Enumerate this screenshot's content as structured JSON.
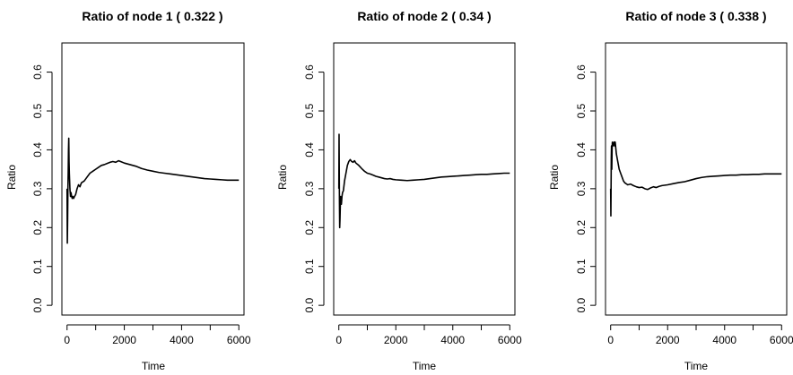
{
  "chart_data": [
    {
      "type": "line",
      "title": "Ratio of node  1  ( 0.322 )",
      "xlabel": "Time",
      "ylabel": "Ratio",
      "xlim": [
        -180,
        6180
      ],
      "ylim": [
        -0.025,
        0.675
      ],
      "x_ticks": [
        "0",
        "2000",
        "4000",
        "6000"
      ],
      "y_ticks": [
        "0.0",
        "0.1",
        "0.2",
        "0.3",
        "0.4",
        "0.5",
        "0.6"
      ],
      "grid": false,
      "series": [
        {
          "x": [
            0,
            10,
            20,
            30,
            40,
            50,
            60,
            70,
            80,
            90,
            100,
            120,
            140,
            160,
            180,
            200,
            230,
            260,
            300,
            350,
            400,
            450,
            500,
            600,
            700,
            800,
            900,
            1000,
            1100,
            1200,
            1300,
            1400,
            1500,
            1600,
            1700,
            1800,
            1900,
            2000,
            2200,
            2400,
            2600,
            2800,
            3000,
            3200,
            3400,
            3600,
            3800,
            4000,
            4200,
            4400,
            4600,
            4800,
            5000,
            5200,
            5400,
            5600,
            5800,
            6000
          ],
          "y": [
            0.3,
            0.16,
            0.22,
            0.3,
            0.34,
            0.4,
            0.43,
            0.37,
            0.34,
            0.32,
            0.3,
            0.28,
            0.29,
            0.28,
            0.275,
            0.28,
            0.275,
            0.28,
            0.285,
            0.3,
            0.31,
            0.305,
            0.315,
            0.32,
            0.33,
            0.34,
            0.345,
            0.35,
            0.355,
            0.36,
            0.362,
            0.365,
            0.368,
            0.37,
            0.368,
            0.372,
            0.369,
            0.366,
            0.362,
            0.358,
            0.352,
            0.348,
            0.345,
            0.342,
            0.34,
            0.338,
            0.336,
            0.334,
            0.332,
            0.33,
            0.328,
            0.326,
            0.325,
            0.324,
            0.323,
            0.322,
            0.322,
            0.322
          ]
        }
      ]
    },
    {
      "type": "line",
      "title": "Ratio of node  2  ( 0.34 )",
      "xlabel": "Time",
      "ylabel": "Ratio",
      "xlim": [
        -180,
        6180
      ],
      "ylim": [
        -0.025,
        0.675
      ],
      "x_ticks": [
        "0",
        "2000",
        "4000",
        "6000"
      ],
      "y_ticks": [
        "0.0",
        "0.1",
        "0.2",
        "0.3",
        "0.4",
        "0.5",
        "0.6"
      ],
      "grid": false,
      "series": [
        {
          "x": [
            0,
            8,
            15,
            22,
            30,
            40,
            50,
            60,
            75,
            90,
            110,
            130,
            160,
            200,
            250,
            300,
            350,
            400,
            450,
            500,
            550,
            600,
            700,
            800,
            900,
            1000,
            1100,
            1200,
            1300,
            1400,
            1500,
            1600,
            1700,
            1800,
            1900,
            2000,
            2200,
            2400,
            2600,
            2800,
            3000,
            3200,
            3400,
            3600,
            3800,
            4000,
            4200,
            4400,
            4600,
            4800,
            5000,
            5200,
            5400,
            5600,
            5800,
            6000
          ],
          "y": [
            0.3,
            0.44,
            0.35,
            0.26,
            0.2,
            0.22,
            0.25,
            0.28,
            0.27,
            0.26,
            0.28,
            0.29,
            0.295,
            0.32,
            0.34,
            0.36,
            0.37,
            0.375,
            0.37,
            0.368,
            0.372,
            0.366,
            0.36,
            0.352,
            0.345,
            0.34,
            0.338,
            0.335,
            0.332,
            0.33,
            0.328,
            0.326,
            0.325,
            0.326,
            0.324,
            0.323,
            0.322,
            0.321,
            0.322,
            0.323,
            0.324,
            0.326,
            0.328,
            0.33,
            0.331,
            0.332,
            0.333,
            0.334,
            0.335,
            0.336,
            0.337,
            0.337,
            0.338,
            0.339,
            0.34,
            0.34
          ]
        }
      ]
    },
    {
      "type": "line",
      "title": "Ratio of node  3  ( 0.338 )",
      "xlabel": "Time",
      "ylabel": "Ratio",
      "xlim": [
        -180,
        6180
      ],
      "ylim": [
        -0.025,
        0.675
      ],
      "x_ticks": [
        "0",
        "2000",
        "4000",
        "6000"
      ],
      "y_ticks": [
        "0.0",
        "0.1",
        "0.2",
        "0.3",
        "0.4",
        "0.5",
        "0.6"
      ],
      "grid": false,
      "series": [
        {
          "x": [
            0,
            8,
            15,
            22,
            30,
            40,
            50,
            60,
            80,
            100,
            120,
            140,
            160,
            180,
            200,
            250,
            300,
            350,
            400,
            450,
            500,
            600,
            700,
            800,
            900,
            1000,
            1100,
            1200,
            1300,
            1400,
            1500,
            1600,
            1700,
            1800,
            2000,
            2200,
            2400,
            2600,
            2800,
            3000,
            3200,
            3400,
            3600,
            3800,
            4000,
            4200,
            4400,
            4600,
            4800,
            5000,
            5200,
            5400,
            5600,
            5800,
            6000
          ],
          "y": [
            0.3,
            0.23,
            0.3,
            0.38,
            0.41,
            0.35,
            0.4,
            0.42,
            0.41,
            0.415,
            0.42,
            0.41,
            0.42,
            0.405,
            0.39,
            0.37,
            0.35,
            0.34,
            0.33,
            0.32,
            0.315,
            0.31,
            0.312,
            0.308,
            0.305,
            0.303,
            0.304,
            0.3,
            0.298,
            0.302,
            0.305,
            0.303,
            0.306,
            0.308,
            0.31,
            0.313,
            0.316,
            0.318,
            0.322,
            0.326,
            0.329,
            0.331,
            0.332,
            0.333,
            0.334,
            0.335,
            0.335,
            0.336,
            0.336,
            0.337,
            0.337,
            0.338,
            0.338,
            0.338,
            0.338
          ]
        }
      ]
    }
  ]
}
